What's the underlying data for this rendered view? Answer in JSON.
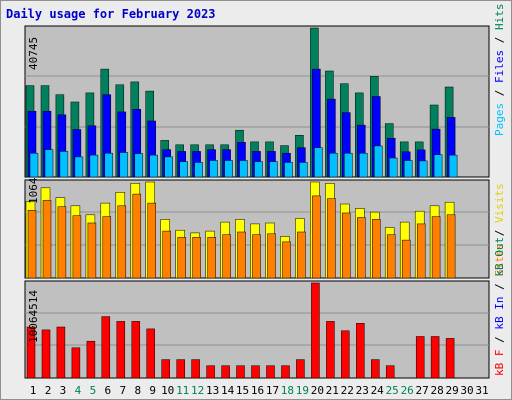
{
  "title": "Daily usage for February 2023",
  "colors": {
    "background": "#ececec",
    "plot_bg": "#c0c0c0",
    "grid": "#909090",
    "hits": "#00805c",
    "files": "#0000ff",
    "pages": "#00c0ff",
    "visits": "#ffff00",
    "sites": "#ff8000",
    "kbout": "#ff0000",
    "kbin": "#ff0000",
    "day_weekday": "#000000",
    "day_weekend": "#00805c"
  },
  "legends": {
    "top": {
      "pages": "Pages",
      "files": "Files",
      "hits": "Hits",
      "sep": " / "
    },
    "middle": {
      "sites": "Sites",
      "visits": "Visits",
      "sep": " / "
    },
    "bottom": {
      "kbf": "kB F",
      "kbin": "kB In",
      "kbout": "kB Out",
      "sep": " / "
    }
  },
  "max_labels": {
    "top": "40745",
    "middle": "1064",
    "bottom": "10064514"
  },
  "chart_data": [
    {
      "type": "bar",
      "title": "Daily usage for February 2023",
      "ylim": [
        0,
        40745
      ],
      "categories": [
        "1",
        "2",
        "3",
        "4",
        "5",
        "6",
        "7",
        "8",
        "9",
        "10",
        "11",
        "12",
        "13",
        "14",
        "15",
        "16",
        "17",
        "18",
        "19",
        "20",
        "21",
        "22",
        "23",
        "24",
        "25",
        "26",
        "27",
        "28",
        "29",
        "30",
        "31"
      ],
      "weekend": [
        false,
        false,
        false,
        true,
        true,
        false,
        false,
        false,
        false,
        false,
        true,
        true,
        false,
        false,
        false,
        false,
        false,
        true,
        true,
        false,
        false,
        false,
        false,
        false,
        true,
        true,
        false,
        false,
        false,
        false,
        false
      ],
      "series": [
        {
          "name": "Hits",
          "values": [
            25000,
            25000,
            22500,
            20500,
            23000,
            29500,
            25200,
            26000,
            23500,
            10000,
            8800,
            8800,
            8800,
            8800,
            12800,
            9600,
            9600,
            8600,
            11400,
            40745,
            29000,
            25500,
            23000,
            27500,
            14600,
            9600,
            9600,
            19700,
            24600,
            0,
            0
          ]
        },
        {
          "name": "Files",
          "values": [
            18000,
            18000,
            17000,
            13000,
            14000,
            22500,
            17800,
            18500,
            15300,
            7500,
            7000,
            7000,
            7500,
            7500,
            9500,
            7000,
            7000,
            6500,
            8000,
            29500,
            21300,
            17600,
            14200,
            22000,
            10600,
            6900,
            7400,
            13100,
            16300,
            0,
            0
          ]
        },
        {
          "name": "Pages",
          "values": [
            6500,
            7500,
            7000,
            5500,
            6000,
            6500,
            6700,
            6400,
            6000,
            5500,
            4200,
            4000,
            4500,
            4500,
            4500,
            4200,
            4200,
            4000,
            4000,
            8000,
            6500,
            6500,
            6500,
            8500,
            5200,
            4500,
            4400,
            6100,
            6000,
            0,
            0
          ]
        }
      ]
    },
    {
      "type": "bar",
      "ylim": [
        0,
        1064
      ],
      "categories": [
        "1",
        "2",
        "3",
        "4",
        "5",
        "6",
        "7",
        "8",
        "9",
        "10",
        "11",
        "12",
        "13",
        "14",
        "15",
        "16",
        "17",
        "18",
        "19",
        "20",
        "21",
        "22",
        "23",
        "24",
        "25",
        "26",
        "27",
        "28",
        "29",
        "30",
        "31"
      ],
      "series": [
        {
          "name": "Visits",
          "values": [
            850,
            1000,
            890,
            800,
            700,
            830,
            950,
            1050,
            1064,
            650,
            530,
            500,
            520,
            620,
            650,
            600,
            610,
            460,
            660,
            1064,
            1050,
            820,
            770,
            730,
            560,
            620,
            740,
            800,
            840,
            0,
            0
          ]
        },
        {
          "name": "Sites",
          "values": [
            750,
            860,
            790,
            690,
            610,
            680,
            800,
            930,
            830,
            520,
            450,
            450,
            450,
            480,
            510,
            480,
            490,
            400,
            510,
            910,
            880,
            720,
            670,
            650,
            480,
            420,
            600,
            680,
            700,
            0,
            0
          ]
        }
      ]
    },
    {
      "type": "bar",
      "ylim": [
        0,
        10064514
      ],
      "categories": [
        "1",
        "2",
        "3",
        "4",
        "5",
        "6",
        "7",
        "8",
        "9",
        "10",
        "11",
        "12",
        "13",
        "14",
        "15",
        "16",
        "17",
        "18",
        "19",
        "20",
        "21",
        "22",
        "23",
        "24",
        "25",
        "26",
        "27",
        "28",
        "29",
        "30",
        "31"
      ],
      "series": [
        {
          "name": "kB Out",
          "values": [
            5400000,
            5100000,
            5400000,
            3200000,
            3900000,
            6500000,
            6000000,
            6000000,
            5200000,
            1950000,
            1950000,
            1950000,
            1300000,
            1300000,
            1300000,
            1300000,
            1300000,
            1300000,
            1950000,
            10064514,
            6000000,
            5000000,
            5800000,
            1950000,
            1300000,
            0,
            4400000,
            4400000,
            4200000,
            0,
            0
          ]
        }
      ]
    }
  ]
}
